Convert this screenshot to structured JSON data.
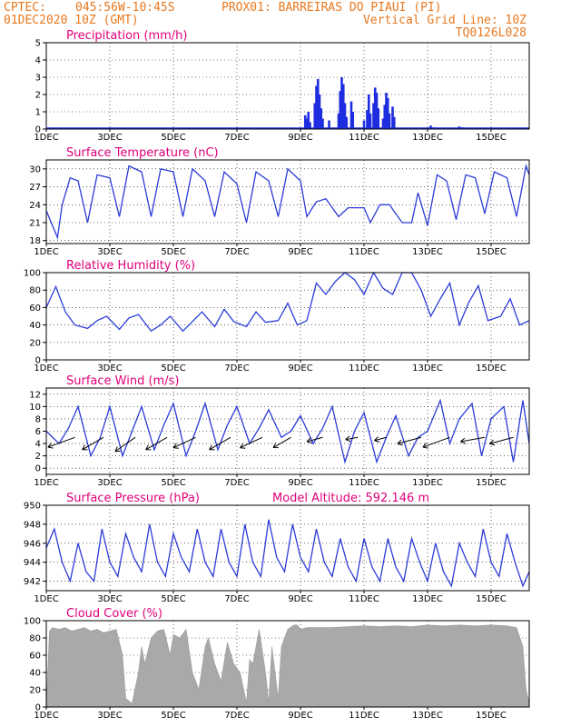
{
  "header": {
    "source": "CPTEC:",
    "coords": "045:56W-10:45S",
    "station": "PROX01: BARREIRAS DO PIAUI (PI)",
    "date": "01DEC2020 10Z (GMT)",
    "vgrid": "Vertical Grid Line: 10Z",
    "code": "TQ0126L028"
  },
  "colors": {
    "header": "#e8781e",
    "title": "#e0007a",
    "line": "#2b3bd8",
    "bar": "#1f2de0",
    "cloud": "#a9a9a9",
    "arrow": "#000000"
  },
  "chart_data": [
    {
      "id": "precip",
      "type": "bar",
      "title": "Precipitation (mm/h)",
      "xlabels": [
        "1DEC",
        "3DEC",
        "5DEC",
        "7DEC",
        "9DEC",
        "11DEC",
        "13DEC",
        "15DEC"
      ],
      "xlim": [
        0,
        15.2
      ],
      "ylim": [
        0,
        5
      ],
      "yticks": [
        0,
        1,
        2,
        3,
        4,
        5
      ],
      "bars": [
        {
          "x": 8.15,
          "y": 0.8
        },
        {
          "x": 8.2,
          "y": 0.6
        },
        {
          "x": 8.25,
          "y": 1.0
        },
        {
          "x": 8.3,
          "y": 0.4
        },
        {
          "x": 8.45,
          "y": 1.5
        },
        {
          "x": 8.5,
          "y": 2.5
        },
        {
          "x": 8.55,
          "y": 2.9
        },
        {
          "x": 8.6,
          "y": 2.0
        },
        {
          "x": 8.65,
          "y": 1.2
        },
        {
          "x": 8.7,
          "y": 0.6
        },
        {
          "x": 8.9,
          "y": 0.5
        },
        {
          "x": 9.2,
          "y": 0.9
        },
        {
          "x": 9.25,
          "y": 2.2
        },
        {
          "x": 9.3,
          "y": 3.0
        },
        {
          "x": 9.35,
          "y": 2.6
        },
        {
          "x": 9.4,
          "y": 1.5
        },
        {
          "x": 9.45,
          "y": 0.7
        },
        {
          "x": 9.6,
          "y": 1.6
        },
        {
          "x": 9.65,
          "y": 1.0
        },
        {
          "x": 10.0,
          "y": 0.5
        },
        {
          "x": 10.1,
          "y": 1.1
        },
        {
          "x": 10.15,
          "y": 2.0
        },
        {
          "x": 10.2,
          "y": 0.9
        },
        {
          "x": 10.3,
          "y": 1.5
        },
        {
          "x": 10.35,
          "y": 2.4
        },
        {
          "x": 10.4,
          "y": 2.1
        },
        {
          "x": 10.45,
          "y": 1.2
        },
        {
          "x": 10.6,
          "y": 0.6
        },
        {
          "x": 10.65,
          "y": 1.4
        },
        {
          "x": 10.7,
          "y": 2.1
        },
        {
          "x": 10.75,
          "y": 1.8
        },
        {
          "x": 10.8,
          "y": 0.9
        },
        {
          "x": 10.9,
          "y": 1.3
        },
        {
          "x": 10.95,
          "y": 0.7
        },
        {
          "x": 12.1,
          "y": 0.2
        },
        {
          "x": 12.2,
          "y": 0.1
        },
        {
          "x": 13.0,
          "y": 0.15
        },
        {
          "x": 13.1,
          "y": 0.1
        }
      ]
    },
    {
      "id": "temp",
      "type": "line",
      "title": "Surface Temperature (nC)",
      "xlabels": [
        "1DEC",
        "3DEC",
        "5DEC",
        "7DEC",
        "9DEC",
        "11DEC",
        "13DEC",
        "15DEC"
      ],
      "xlim": [
        0,
        15.2
      ],
      "ylim": [
        17.5,
        31.5
      ],
      "yticks": [
        18,
        21,
        24,
        27,
        30
      ],
      "x": [
        0,
        0.35,
        0.5,
        0.75,
        1.0,
        1.3,
        1.6,
        2.0,
        2.3,
        2.6,
        3.0,
        3.3,
        3.6,
        4.0,
        4.3,
        4.6,
        5.0,
        5.3,
        5.6,
        6.0,
        6.3,
        6.6,
        7.0,
        7.3,
        7.6,
        8.0,
        8.2,
        8.5,
        8.8,
        9.2,
        9.5,
        9.8,
        10.0,
        10.2,
        10.5,
        10.8,
        11.2,
        11.5,
        11.7,
        12.0,
        12.3,
        12.6,
        12.9,
        13.2,
        13.5,
        13.8,
        14.1,
        14.5,
        14.8,
        15.1,
        15.2
      ],
      "y": [
        23,
        18.5,
        24,
        28.5,
        28,
        21,
        29,
        28.5,
        22,
        30.5,
        29.5,
        22,
        30,
        29.5,
        22,
        30,
        28,
        22,
        29.5,
        27.5,
        21,
        29.5,
        28,
        22,
        30,
        28,
        22,
        24.5,
        25,
        22,
        23.5,
        23.5,
        23.5,
        21,
        24,
        24,
        21,
        21,
        26,
        20.5,
        29,
        28,
        21.5,
        29,
        28.5,
        22.5,
        29.5,
        28.5,
        22,
        30.5,
        29
      ]
    },
    {
      "id": "rh",
      "type": "line",
      "title": "Relative Humidity (%)",
      "xlabels": [
        "1DEC",
        "3DEC",
        "5DEC",
        "7DEC",
        "9DEC",
        "11DEC",
        "13DEC",
        "15DEC"
      ],
      "xlim": [
        0,
        15.2
      ],
      "ylim": [
        0,
        100
      ],
      "yticks": [
        0,
        20,
        40,
        60,
        80,
        100
      ],
      "x": [
        0,
        0.3,
        0.6,
        0.9,
        1.3,
        1.6,
        1.9,
        2.3,
        2.6,
        2.9,
        3.3,
        3.6,
        3.9,
        4.3,
        4.6,
        4.9,
        5.3,
        5.6,
        5.9,
        6.3,
        6.6,
        6.9,
        7.3,
        7.6,
        7.9,
        8.2,
        8.5,
        8.8,
        9.1,
        9.4,
        9.7,
        10.0,
        10.3,
        10.6,
        10.9,
        11.2,
        11.5,
        11.8,
        12.1,
        12.4,
        12.7,
        13.0,
        13.3,
        13.6,
        13.9,
        14.3,
        14.6,
        14.9,
        15.2
      ],
      "y": [
        60,
        84,
        55,
        40,
        36,
        45,
        50,
        35,
        48,
        52,
        33,
        40,
        50,
        33,
        44,
        55,
        38,
        58,
        44,
        38,
        55,
        43,
        45,
        65,
        40,
        45,
        88,
        75,
        90,
        100,
        92,
        75,
        100,
        82,
        75,
        100,
        100,
        80,
        50,
        70,
        88,
        40,
        66,
        85,
        45,
        50,
        70,
        40,
        45
      ]
    },
    {
      "id": "wind",
      "type": "line",
      "title": "Surface Wind (m/s)",
      "xlabels": [
        "1DEC",
        "3DEC",
        "5DEC",
        "7DEC",
        "9DEC",
        "11DEC",
        "13DEC",
        "15DEC"
      ],
      "xlim": [
        0,
        15.2
      ],
      "ylim": [
        -1,
        13
      ],
      "yticks": [
        0,
        2,
        4,
        6,
        8,
        10,
        12
      ],
      "x": [
        0,
        0.4,
        0.7,
        1.0,
        1.4,
        1.7,
        2.0,
        2.4,
        2.7,
        3.0,
        3.4,
        3.7,
        4.0,
        4.4,
        4.7,
        5.0,
        5.4,
        5.7,
        6.0,
        6.4,
        6.7,
        7.0,
        7.4,
        7.7,
        8.0,
        8.4,
        8.7,
        9.0,
        9.4,
        9.7,
        10.0,
        10.4,
        10.7,
        11.0,
        11.4,
        11.7,
        12.0,
        12.4,
        12.7,
        13.0,
        13.4,
        13.7,
        14.0,
        14.4,
        14.7,
        15.0,
        15.2
      ],
      "y": [
        6,
        4,
        6.5,
        10,
        2,
        5,
        10,
        2,
        6,
        10,
        3,
        7,
        10.5,
        2,
        6,
        10.5,
        3,
        7,
        10,
        4,
        6.5,
        9.5,
        5,
        6,
        8.5,
        4,
        6.5,
        10,
        1,
        6,
        9,
        1,
        5,
        8.5,
        2,
        5,
        6,
        11,
        4,
        8,
        10.5,
        2,
        8,
        10,
        1,
        11,
        4
      ],
      "arrows_x": [
        0.9,
        1.8,
        2.8,
        3.8,
        4.7,
        5.8,
        6.8,
        7.7,
        8.7,
        9.8,
        10.7,
        11.8,
        12.7,
        13.8,
        14.7
      ],
      "arrows_dir": [
        -160,
        -150,
        -145,
        -150,
        -155,
        -150,
        -155,
        -150,
        -165,
        -170,
        -165,
        -165,
        -160,
        -170,
        -165
      ],
      "arrows_len": [
        7,
        6,
        6,
        6,
        6,
        6,
        6,
        5,
        4,
        3,
        3,
        6,
        7,
        6,
        6
      ]
    },
    {
      "id": "pres",
      "type": "line",
      "title": "Surface Pressure (hPa)",
      "annotation": "Model Altitude: 592.146 m",
      "xlabels": [
        "1DEC",
        "3DEC",
        "5DEC",
        "7DEC",
        "9DEC",
        "11DEC",
        "13DEC",
        "15DEC"
      ],
      "xlim": [
        0,
        15.2
      ],
      "ylim": [
        941,
        950
      ],
      "yticks": [
        942,
        944,
        946,
        948,
        950
      ],
      "x": [
        0,
        0.25,
        0.5,
        0.75,
        1.0,
        1.25,
        1.5,
        1.75,
        2.0,
        2.25,
        2.5,
        2.75,
        3.0,
        3.25,
        3.5,
        3.75,
        4.0,
        4.25,
        4.5,
        4.75,
        5.0,
        5.25,
        5.5,
        5.75,
        6.0,
        6.25,
        6.5,
        6.75,
        7.0,
        7.25,
        7.5,
        7.75,
        8.0,
        8.25,
        8.5,
        8.75,
        9.0,
        9.25,
        9.5,
        9.75,
        10.0,
        10.25,
        10.5,
        10.75,
        11.0,
        11.25,
        11.5,
        11.75,
        12.0,
        12.25,
        12.5,
        12.75,
        13.0,
        13.25,
        13.5,
        13.75,
        14.0,
        14.25,
        14.5,
        14.75,
        15.0,
        15.2
      ],
      "y": [
        945.5,
        947.5,
        944,
        942,
        946,
        943,
        942,
        947.5,
        944,
        942.5,
        947,
        944.5,
        943,
        948,
        944,
        942.5,
        947,
        944.5,
        943,
        947.5,
        944,
        942.5,
        947.5,
        944,
        942.5,
        948,
        944,
        942.5,
        948.5,
        944.5,
        943,
        948,
        944.5,
        943,
        947.5,
        944,
        942.5,
        946.5,
        943.5,
        942,
        946.5,
        943.5,
        942,
        946.5,
        943.5,
        942,
        946.5,
        944,
        942,
        946,
        943,
        941.5,
        946,
        944,
        942.5,
        947.5,
        944,
        942.5,
        947,
        944,
        941.5,
        943
      ]
    },
    {
      "id": "cloud",
      "type": "area",
      "title": "Cloud Cover (%)",
      "xlabels": [
        "1DEC",
        "3DEC",
        "5DEC",
        "7DEC",
        "9DEC",
        "11DEC",
        "13DEC",
        "15DEC"
      ],
      "xlim": [
        0,
        15.2
      ],
      "ylim": [
        0,
        100
      ],
      "yticks": [
        0,
        20,
        40,
        60,
        80,
        100
      ],
      "x": [
        0,
        0.1,
        0.2,
        0.4,
        0.6,
        0.8,
        1.0,
        1.2,
        1.4,
        1.6,
        1.8,
        2.0,
        2.2,
        2.4,
        2.5,
        2.7,
        2.9,
        3.0,
        3.1,
        3.3,
        3.5,
        3.7,
        3.9,
        4.0,
        4.2,
        4.4,
        4.6,
        4.8,
        5.0,
        5.1,
        5.3,
        5.5,
        5.7,
        5.9,
        6.1,
        6.3,
        6.4,
        6.5,
        6.7,
        6.9,
        7.0,
        7.1,
        7.3,
        7.4,
        7.6,
        7.8,
        7.9,
        8.0,
        8.2,
        8.5,
        9.0,
        9.5,
        10.0,
        10.5,
        11.0,
        11.5,
        12.0,
        12.5,
        13.0,
        13.5,
        14.0,
        14.5,
        14.8,
        15.0,
        15.1,
        15.2
      ],
      "y": [
        0,
        88,
        92,
        90,
        92,
        88,
        90,
        92,
        88,
        90,
        86,
        88,
        90,
        60,
        10,
        4,
        40,
        70,
        50,
        80,
        88,
        90,
        60,
        84,
        80,
        90,
        40,
        20,
        70,
        80,
        50,
        30,
        75,
        50,
        40,
        5,
        55,
        50,
        90,
        40,
        5,
        70,
        10,
        70,
        90,
        95,
        95,
        90,
        92,
        92,
        92,
        93,
        94,
        93,
        94,
        93,
        95,
        94,
        95,
        94,
        95,
        94,
        92,
        70,
        20,
        5
      ]
    }
  ]
}
